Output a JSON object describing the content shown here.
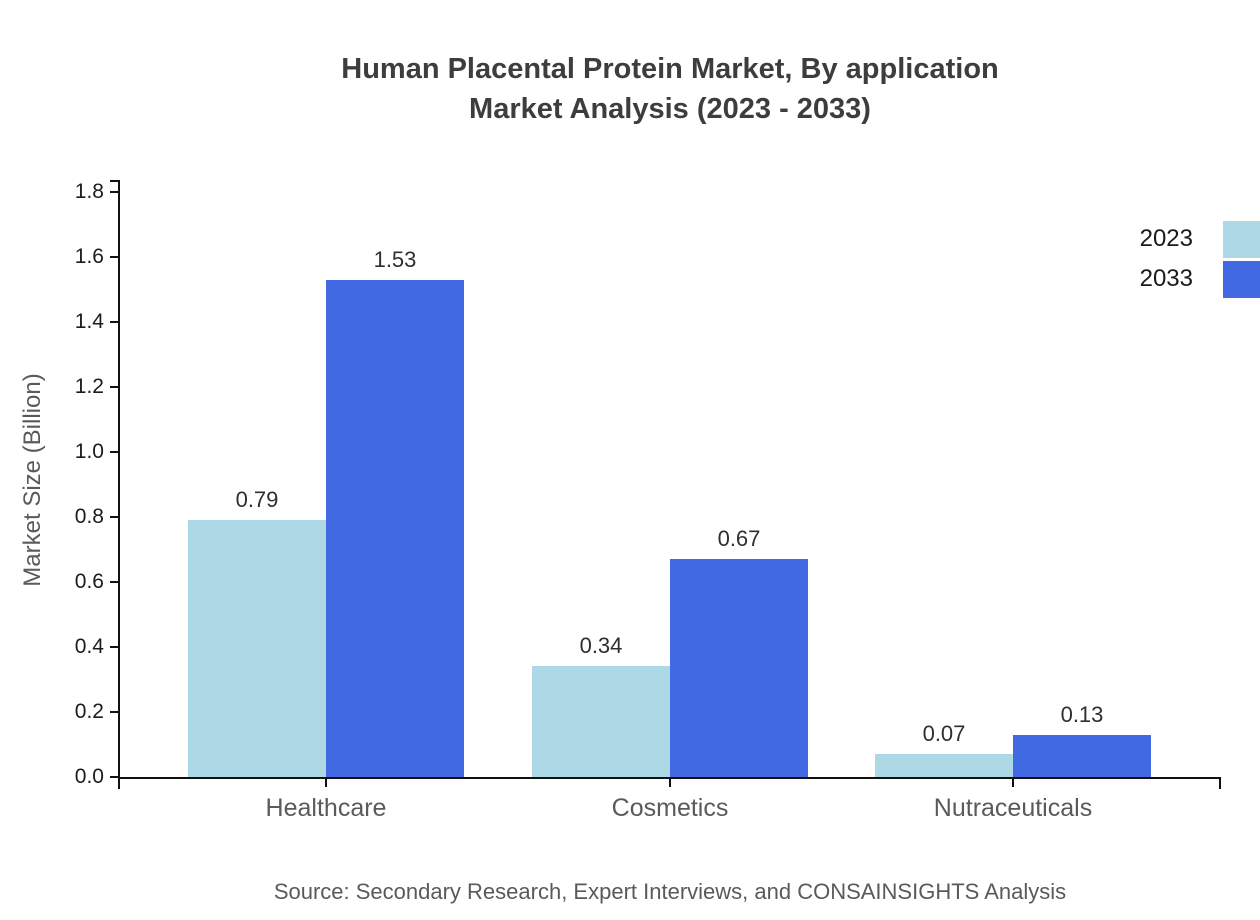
{
  "title": {
    "line1": "Human Placental Protein Market, By application",
    "line2": "Market Analysis (2023 - 2033)"
  },
  "source": "Source: Secondary Research, Expert Interviews, and CONSAINSIGHTS Analysis",
  "legend": {
    "items": [
      {
        "label": "2023",
        "color": "#ADD8E6"
      },
      {
        "label": "2033",
        "color": "#4169E1"
      }
    ]
  },
  "chart_data": {
    "type": "bar",
    "title": "Human Placental Protein Market, By application Market Analysis (2023 - 2033)",
    "categories": [
      "Healthcare",
      "Cosmetics",
      "Nutraceuticals"
    ],
    "series": [
      {
        "name": "2023",
        "color": "#ADD8E6",
        "values": [
          0.79,
          0.34,
          0.07
        ]
      },
      {
        "name": "2033",
        "color": "#4169E1",
        "values": [
          1.53,
          0.67,
          0.13
        ]
      }
    ],
    "xlabel": "",
    "ylabel": "Market Size (Billion)",
    "ylim": [
      0,
      1.84
    ],
    "yticks": [
      0.0,
      0.2,
      0.4,
      0.6,
      0.8,
      1.0,
      1.2,
      1.4,
      1.6,
      1.8
    ],
    "value_labels": true,
    "grid": false,
    "legend_position": "top-right",
    "axis_color": "#111111",
    "background": "#ffffff"
  }
}
